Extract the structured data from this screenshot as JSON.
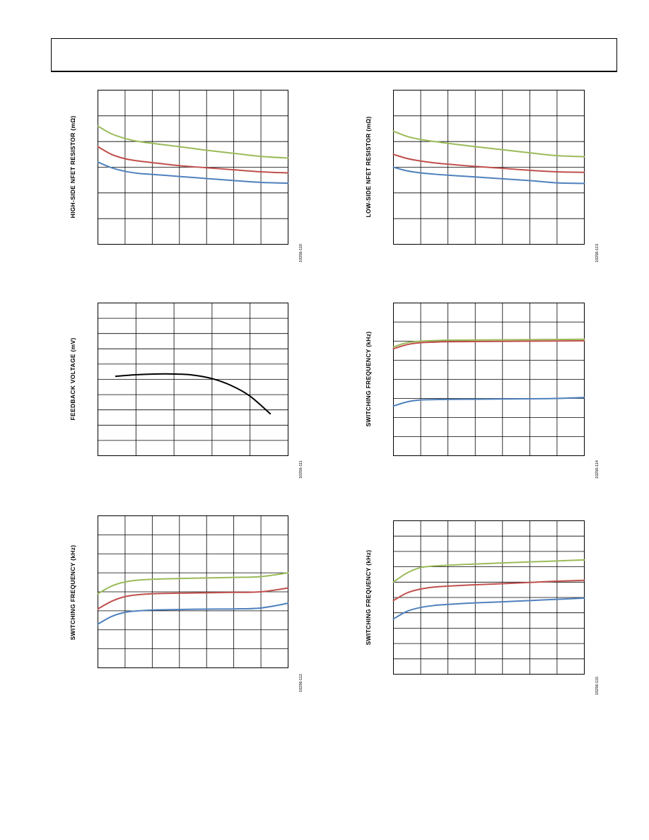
{
  "chart_data": [
    {
      "type": "line",
      "ylabel": "HIGH-SIDE NFET RESISTOR (mΩ)",
      "figure_id": "10256-110",
      "xlim": [
        0,
        7
      ],
      "ylim": [
        0,
        6
      ],
      "grid": {
        "x_divisions": 7,
        "y_divisions": 6
      },
      "series": [
        {
          "color": "#9bbb59",
          "x": [
            0,
            0.5,
            1,
            1.5,
            2,
            3,
            4,
            5,
            6,
            7
          ],
          "y": [
            4.6,
            4.3,
            4.12,
            4.0,
            3.93,
            3.8,
            3.66,
            3.54,
            3.42,
            3.36
          ]
        },
        {
          "color": "#c0504d",
          "x": [
            0,
            0.5,
            1,
            1.5,
            2,
            3,
            4,
            5,
            6,
            7
          ],
          "y": [
            3.8,
            3.5,
            3.33,
            3.24,
            3.18,
            3.06,
            2.98,
            2.9,
            2.82,
            2.78
          ]
        },
        {
          "color": "#4f81bd",
          "x": [
            0,
            0.5,
            1,
            1.5,
            2,
            3,
            4,
            5,
            6,
            7
          ],
          "y": [
            3.2,
            2.98,
            2.84,
            2.76,
            2.72,
            2.64,
            2.56,
            2.48,
            2.41,
            2.38
          ]
        }
      ]
    },
    {
      "type": "line",
      "ylabel": "LOW-SIDE NFET RESISTOR (mΩ)",
      "figure_id": "10256-113",
      "xlim": [
        0,
        7
      ],
      "ylim": [
        0,
        6
      ],
      "grid": {
        "x_divisions": 7,
        "y_divisions": 6
      },
      "series": [
        {
          "color": "#9bbb59",
          "x": [
            0,
            0.5,
            1,
            1.5,
            2,
            3,
            4,
            5,
            6,
            7
          ],
          "y": [
            4.4,
            4.2,
            4.08,
            4.0,
            3.93,
            3.8,
            3.68,
            3.56,
            3.45,
            3.41
          ]
        },
        {
          "color": "#c0504d",
          "x": [
            0,
            0.5,
            1,
            1.5,
            2,
            3,
            4,
            5,
            6,
            7
          ],
          "y": [
            3.5,
            3.34,
            3.24,
            3.17,
            3.12,
            3.03,
            2.96,
            2.88,
            2.82,
            2.8
          ]
        },
        {
          "color": "#4f81bd",
          "x": [
            0,
            0.5,
            1,
            1.5,
            2,
            3,
            4,
            5,
            6,
            7
          ],
          "y": [
            3.0,
            2.86,
            2.78,
            2.73,
            2.69,
            2.62,
            2.55,
            2.48,
            2.39,
            2.37
          ]
        }
      ]
    },
    {
      "type": "line",
      "ylabel": "FEEDBACK VOLTAGE (mV)",
      "figure_id": "10256-111",
      "xlim": [
        0,
        5
      ],
      "ylim": [
        0,
        10
      ],
      "grid": {
        "x_divisions": 5,
        "y_divisions": 10
      },
      "series": [
        {
          "color": "#000000",
          "x": [
            0.47,
            1.0,
            1.5,
            2.0,
            2.5,
            3.0,
            3.5,
            4.0,
            4.53
          ],
          "y": [
            5.2,
            5.3,
            5.35,
            5.35,
            5.28,
            5.05,
            4.6,
            3.9,
            2.75
          ]
        }
      ]
    },
    {
      "type": "line",
      "ylabel": "SWITCHING FREQUENCY (kHz)",
      "figure_id": "10256-114",
      "xlim": [
        0,
        7
      ],
      "ylim": [
        0,
        8
      ],
      "grid": {
        "x_divisions": 7,
        "y_divisions": 8
      },
      "series": [
        {
          "color": "#9bbb59",
          "x": [
            0,
            0.5,
            1,
            1.5,
            2,
            3,
            4,
            5,
            6,
            7
          ],
          "y": [
            5.7,
            5.92,
            6.0,
            6.03,
            6.05,
            6.06,
            6.07,
            6.08,
            6.09,
            6.1
          ]
        },
        {
          "color": "#c0504d",
          "x": [
            0,
            0.5,
            1,
            1.5,
            2,
            3,
            4,
            5,
            6,
            7
          ],
          "y": [
            5.6,
            5.82,
            5.92,
            5.95,
            5.97,
            5.98,
            5.99,
            6.0,
            6.01,
            6.02
          ]
        },
        {
          "color": "#4f81bd",
          "x": [
            0,
            0.5,
            1,
            1.5,
            2,
            3,
            4,
            5,
            6,
            7
          ],
          "y": [
            2.6,
            2.82,
            2.92,
            2.94,
            2.95,
            2.96,
            2.97,
            2.98,
            3.0,
            3.05
          ]
        }
      ]
    },
    {
      "type": "line",
      "ylabel": "SWITCHING FREQUENCY (kHz)",
      "figure_id": "10256-112",
      "xlim": [
        0,
        7
      ],
      "ylim": [
        0,
        8
      ],
      "grid": {
        "x_divisions": 7,
        "y_divisions": 8
      },
      "series": [
        {
          "color": "#9bbb59",
          "x": [
            0,
            0.5,
            1,
            1.5,
            2,
            3,
            4,
            5,
            6,
            7
          ],
          "y": [
            3.9,
            4.3,
            4.52,
            4.62,
            4.66,
            4.7,
            4.73,
            4.76,
            4.8,
            5.0
          ]
        },
        {
          "color": "#c0504d",
          "x": [
            0,
            0.5,
            1,
            1.5,
            2,
            3,
            4,
            5,
            6,
            7
          ],
          "y": [
            3.1,
            3.5,
            3.75,
            3.85,
            3.9,
            3.93,
            3.95,
            3.97,
            4.0,
            4.2
          ]
        },
        {
          "color": "#4f81bd",
          "x": [
            0,
            0.5,
            1,
            1.5,
            2,
            3,
            4,
            5,
            6,
            7
          ],
          "y": [
            2.3,
            2.7,
            2.92,
            3.0,
            3.04,
            3.07,
            3.09,
            3.1,
            3.15,
            3.4
          ]
        }
      ]
    },
    {
      "type": "line",
      "ylabel": "SWITCHING FREQUENCY (kHz)",
      "figure_id": "10256-115",
      "xlim": [
        0,
        7
      ],
      "ylim": [
        0,
        10
      ],
      "grid": {
        "x_divisions": 7,
        "y_divisions": 10
      },
      "series": [
        {
          "color": "#9bbb59",
          "x": [
            0,
            0.5,
            1,
            1.5,
            2,
            3,
            4,
            5,
            6,
            7
          ],
          "y": [
            6.0,
            6.6,
            6.95,
            7.05,
            7.1,
            7.18,
            7.25,
            7.32,
            7.38,
            7.45
          ]
        },
        {
          "color": "#c0504d",
          "x": [
            0,
            0.5,
            1,
            1.5,
            2,
            3,
            4,
            5,
            6,
            7
          ],
          "y": [
            4.8,
            5.3,
            5.55,
            5.68,
            5.74,
            5.83,
            5.9,
            5.98,
            6.06,
            6.12
          ]
        },
        {
          "color": "#4f81bd",
          "x": [
            0,
            0.5,
            1,
            1.5,
            2,
            3,
            4,
            5,
            6,
            7
          ],
          "y": [
            3.6,
            4.1,
            4.35,
            4.48,
            4.55,
            4.65,
            4.72,
            4.8,
            4.88,
            4.96
          ]
        }
      ]
    }
  ]
}
